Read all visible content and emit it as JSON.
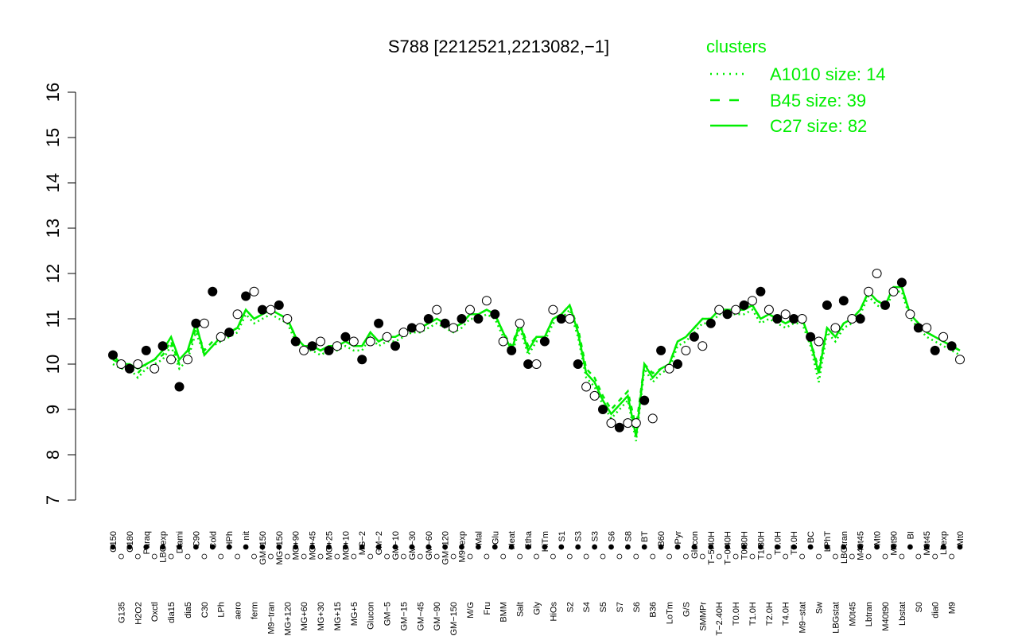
{
  "chart_data": {
    "type": "line",
    "title": "S788 [2212521,2213082,−1]",
    "xlabel": "",
    "ylabel": "",
    "ylim": [
      7,
      16
    ],
    "yticks": [
      7,
      8,
      9,
      10,
      11,
      12,
      13,
      14,
      15,
      16
    ],
    "grid": false,
    "colors": {
      "line": "#00ee00",
      "legend": "#00ee00",
      "axis": "#000000",
      "point_open": "#ffffff",
      "point_filled": "#000000"
    },
    "legend": {
      "title": "clusters",
      "placement": "top-right",
      "entries": [
        {
          "label": "A1010 size: 14",
          "style": "dotted"
        },
        {
          "label": "B45 size: 39",
          "style": "dashed"
        },
        {
          "label": "C27 size: 82",
          "style": "solid"
        }
      ]
    },
    "xtick_labels_row1": [
      "G150",
      "G180",
      "G135",
      "H2O2",
      "Paraq",
      "LBGexp",
      "Oxctl",
      "dia15",
      "Diami",
      "dia5",
      "C90",
      "C30",
      "Cold",
      "HPh",
      "LPh",
      "aero",
      "nit",
      "ferm",
      "GM+150",
      "MG+150",
      "M9−tran",
      "MG+120",
      "MG+90",
      "MG+60",
      "MG+45",
      "MG+30",
      "MG+25",
      "MG+15",
      "MG+10",
      "MG+5",
      "MG−2",
      "Glucon",
      "GM−2",
      "GM−5",
      "GM−10",
      "GM−15",
      "GM−30",
      "GM−45",
      "GM−60",
      "GM−90",
      "GM−120",
      "GM−150",
      "M9−exp",
      "M/G",
      "Mal",
      "Fru",
      "Glu",
      "BMM",
      "Heat",
      "Salt",
      "Etha",
      "Gly",
      "HiTm",
      "HiOs",
      "S1",
      "S2",
      "S3",
      "S4",
      "S3",
      "S5",
      "S6",
      "S7",
      "S8",
      "S6",
      "BT",
      "B36",
      "B60",
      "LoTm",
      "Pyr",
      "G/S",
      "Glucon",
      "SMMPr",
      "T−5.40H",
      "T−2.40H",
      "T−0.40H",
      "T0.0H",
      "T0.30H",
      "T1.0H",
      "T1.30H",
      "T2.0H",
      "T3.0H",
      "T4.0H",
      "T5.0H",
      "M9−stat",
      "BC",
      "Sw",
      "LPhT",
      "LBGstat",
      "LBGtran",
      "M0t45",
      "M40t45",
      "Lbtran",
      "Mt0",
      "M40t90",
      "M0t90",
      "Lbstat",
      "BI",
      "S0",
      "M0t45",
      "dia0",
      "Lbexp",
      "M9",
      "Mt0"
    ],
    "x_label_display": [
      "G150",
      "G135",
      "G180",
      "H2O2",
      "Paraq",
      "Oxctl",
      "LBGexp",
      "dia15",
      "Diami",
      "dia5",
      "C90",
      "C30",
      "Cold",
      "LPh",
      "HPh",
      "aero",
      "nit",
      "ferm",
      "GM+150",
      "M9−tran",
      "MG+150",
      "MG+120",
      "MG+90",
      "MG+60",
      "MG+45",
      "MG+30",
      "MG+25",
      "MG+15",
      "MG+10",
      "MG+5",
      "MG−2",
      "Glucon",
      "GM−2",
      "GM−5",
      "GM−10",
      "GM−15",
      "GM−30",
      "GM−45",
      "GM−60",
      "GM−90",
      "GM−120",
      "GM−150",
      "M9−exp",
      "M/G",
      "Mal",
      "Fru",
      "Glu",
      "BMM",
      "Heat",
      "Salt",
      "Etha",
      "Gly",
      "HiTm",
      "HiOs",
      "S1",
      "S2",
      "S3",
      "S4",
      "S3",
      "S5",
      "S6",
      "S7",
      "S8",
      "S6",
      "BT",
      "B36",
      "B60",
      "LoTm",
      "Pyr",
      "G/S",
      "Glucon",
      "SMMPr",
      "T−5.40H",
      "T−2.40H",
      "T−0.40H",
      "T0.0H",
      "T0.30H",
      "T1.0H",
      "T1.30H",
      "T2.0H",
      "T3.0H",
      "T4.0H",
      "T5.0H",
      "M9−stat",
      "BC",
      "Sw",
      "LPhT",
      "LBGstat",
      "LBGtran",
      "M0t45",
      "M40t45",
      "Lbtran",
      "Mt0",
      "M40t90",
      "M0t90",
      "Lbstat",
      "BI",
      "S0",
      "M0t45",
      "dia0",
      "Lbexp",
      "M9",
      "Mt0"
    ],
    "series": [
      {
        "style": "solid",
        "values": [
          10.2,
          10.0,
          10.0,
          9.9,
          10.0,
          10.1,
          10.3,
          10.6,
          10.1,
          10.3,
          10.9,
          10.2,
          10.4,
          10.6,
          10.7,
          10.8,
          11.2,
          11.0,
          11.1,
          11.2,
          11.1,
          11.0,
          10.6,
          10.4,
          10.4,
          10.3,
          10.4,
          10.4,
          10.5,
          10.4,
          10.4,
          10.7,
          10.5,
          10.6,
          10.6,
          10.7,
          10.8,
          10.8,
          10.9,
          11.0,
          10.9,
          10.8,
          10.9,
          11.1,
          11.1,
          11.2,
          11.1,
          10.7,
          10.3,
          10.9,
          10.3,
          10.6,
          10.6,
          11.0,
          11.1,
          11.3,
          10.7,
          9.8,
          9.6,
          9.2,
          8.9,
          9.1,
          9.3,
          8.4,
          10.0,
          9.7,
          9.9,
          10.0,
          10.5,
          10.6,
          10.8,
          11.0,
          11.0,
          11.2,
          11.2,
          11.2,
          11.2,
          11.3,
          11.0,
          11.1,
          11.0,
          10.9,
          11.0,
          11.0,
          10.5,
          9.8,
          10.8,
          10.6,
          10.9,
          11.0,
          11.2,
          11.6,
          11.4,
          11.3,
          11.7,
          11.7,
          11.1,
          10.9,
          10.7,
          10.6,
          10.5,
          10.4,
          10.3
        ]
      },
      {
        "style": "dashed",
        "values": [
          10.1,
          10.0,
          9.9,
          9.8,
          10.0,
          10.1,
          10.2,
          10.5,
          10.0,
          10.2,
          10.8,
          10.3,
          10.5,
          10.6,
          10.7,
          10.8,
          11.2,
          11.0,
          11.1,
          11.2,
          11.1,
          11.0,
          10.6,
          10.4,
          10.4,
          10.3,
          10.4,
          10.4,
          10.5,
          10.4,
          10.4,
          10.7,
          10.5,
          10.6,
          10.6,
          10.7,
          10.8,
          10.8,
          10.9,
          11.0,
          10.9,
          10.8,
          10.9,
          11.1,
          11.1,
          11.2,
          11.1,
          10.7,
          10.4,
          10.9,
          10.4,
          10.6,
          10.6,
          11.0,
          11.1,
          11.3,
          10.8,
          9.9,
          9.7,
          9.3,
          9.0,
          9.2,
          9.4,
          8.6,
          10.0,
          9.8,
          9.9,
          10.0,
          10.5,
          10.6,
          10.8,
          11.0,
          11.0,
          11.2,
          11.2,
          11.2,
          11.2,
          11.3,
          11.0,
          11.1,
          11.0,
          10.9,
          11.0,
          11.0,
          10.5,
          9.9,
          10.8,
          10.6,
          10.9,
          11.0,
          11.2,
          11.6,
          11.4,
          11.3,
          11.7,
          11.7,
          11.1,
          10.9,
          10.7,
          10.6,
          10.5,
          10.4,
          10.3
        ]
      },
      {
        "style": "dotted",
        "values": [
          10.0,
          9.9,
          9.9,
          9.7,
          9.9,
          10.0,
          10.1,
          10.4,
          9.9,
          10.1,
          10.7,
          10.2,
          10.4,
          10.5,
          10.6,
          10.7,
          11.1,
          10.9,
          11.0,
          11.1,
          11.0,
          10.9,
          10.5,
          10.3,
          10.3,
          10.2,
          10.3,
          10.3,
          10.4,
          10.3,
          10.3,
          10.6,
          10.4,
          10.5,
          10.5,
          10.6,
          10.7,
          10.7,
          10.8,
          10.9,
          10.8,
          10.7,
          10.8,
          11.0,
          11.0,
          11.1,
          11.0,
          10.6,
          10.2,
          10.8,
          10.2,
          10.5,
          10.5,
          10.9,
          11.0,
          11.2,
          10.6,
          9.7,
          9.5,
          9.1,
          8.8,
          9.0,
          9.2,
          8.3,
          9.9,
          9.6,
          9.8,
          9.9,
          10.4,
          10.5,
          10.7,
          10.9,
          10.9,
          11.1,
          11.1,
          11.1,
          11.1,
          11.2,
          10.9,
          11.0,
          10.9,
          10.8,
          10.9,
          10.9,
          10.4,
          9.6,
          10.7,
          10.5,
          10.8,
          10.9,
          11.1,
          11.5,
          11.3,
          11.2,
          11.6,
          11.6,
          11.0,
          10.8,
          10.6,
          10.5,
          10.4,
          10.3,
          10.2
        ]
      }
    ],
    "points": [
      {
        "y": 10.2,
        "f": 1
      },
      {
        "y": 10.0,
        "f": 0
      },
      {
        "y": 9.9,
        "f": 1
      },
      {
        "y": 10.0,
        "f": 0
      },
      {
        "y": 10.3,
        "f": 1
      },
      {
        "y": 9.9,
        "f": 0
      },
      {
        "y": 10.4,
        "f": 1
      },
      {
        "y": 10.1,
        "f": 0
      },
      {
        "y": 9.5,
        "f": 1
      },
      {
        "y": 10.1,
        "f": 0
      },
      {
        "y": 10.9,
        "f": 1
      },
      {
        "y": 10.9,
        "f": 0
      },
      {
        "y": 11.6,
        "f": 1
      },
      {
        "y": 10.6,
        "f": 0
      },
      {
        "y": 10.7,
        "f": 1
      },
      {
        "y": 11.1,
        "f": 0
      },
      {
        "y": 11.5,
        "f": 1
      },
      {
        "y": 11.6,
        "f": 0
      },
      {
        "y": 11.2,
        "f": 1
      },
      {
        "y": 11.2,
        "f": 0
      },
      {
        "y": 11.3,
        "f": 1
      },
      {
        "y": 11.0,
        "f": 0
      },
      {
        "y": 10.5,
        "f": 1
      },
      {
        "y": 10.3,
        "f": 0
      },
      {
        "y": 10.4,
        "f": 1
      },
      {
        "y": 10.5,
        "f": 0
      },
      {
        "y": 10.3,
        "f": 1
      },
      {
        "y": 10.4,
        "f": 0
      },
      {
        "y": 10.6,
        "f": 1
      },
      {
        "y": 10.5,
        "f": 0
      },
      {
        "y": 10.1,
        "f": 1
      },
      {
        "y": 10.5,
        "f": 0
      },
      {
        "y": 10.9,
        "f": 1
      },
      {
        "y": 10.6,
        "f": 0
      },
      {
        "y": 10.4,
        "f": 1
      },
      {
        "y": 10.7,
        "f": 0
      },
      {
        "y": 10.8,
        "f": 1
      },
      {
        "y": 10.8,
        "f": 0
      },
      {
        "y": 11.0,
        "f": 1
      },
      {
        "y": 11.2,
        "f": 0
      },
      {
        "y": 10.9,
        "f": 1
      },
      {
        "y": 10.8,
        "f": 0
      },
      {
        "y": 11.0,
        "f": 1
      },
      {
        "y": 11.2,
        "f": 0
      },
      {
        "y": 11.0,
        "f": 1
      },
      {
        "y": 11.4,
        "f": 0
      },
      {
        "y": 11.1,
        "f": 1
      },
      {
        "y": 10.5,
        "f": 0
      },
      {
        "y": 10.3,
        "f": 1
      },
      {
        "y": 10.9,
        "f": 0
      },
      {
        "y": 10.0,
        "f": 1
      },
      {
        "y": 10.0,
        "f": 0
      },
      {
        "y": 10.5,
        "f": 1
      },
      {
        "y": 11.2,
        "f": 0
      },
      {
        "y": 11.0,
        "f": 1
      },
      {
        "y": 11.0,
        "f": 0
      },
      {
        "y": 10.0,
        "f": 1
      },
      {
        "y": 9.5,
        "f": 0
      },
      {
        "y": 9.3,
        "f": 0
      },
      {
        "y": 9.0,
        "f": 1
      },
      {
        "y": 8.7,
        "f": 0
      },
      {
        "y": 8.6,
        "f": 1
      },
      {
        "y": 8.7,
        "f": 0
      },
      {
        "y": 8.7,
        "f": 0
      },
      {
        "y": 9.2,
        "f": 1
      },
      {
        "y": 8.8,
        "f": 0
      },
      {
        "y": 10.3,
        "f": 1
      },
      {
        "y": 9.9,
        "f": 0
      },
      {
        "y": 10.0,
        "f": 1
      },
      {
        "y": 10.3,
        "f": 0
      },
      {
        "y": 10.6,
        "f": 1
      },
      {
        "y": 10.4,
        "f": 0
      },
      {
        "y": 10.9,
        "f": 1
      },
      {
        "y": 11.2,
        "f": 0
      },
      {
        "y": 11.1,
        "f": 1
      },
      {
        "y": 11.2,
        "f": 0
      },
      {
        "y": 11.3,
        "f": 1
      },
      {
        "y": 11.4,
        "f": 0
      },
      {
        "y": 11.6,
        "f": 1
      },
      {
        "y": 11.2,
        "f": 0
      },
      {
        "y": 11.0,
        "f": 1
      },
      {
        "y": 11.1,
        "f": 0
      },
      {
        "y": 11.0,
        "f": 1
      },
      {
        "y": 11.0,
        "f": 0
      },
      {
        "y": 10.6,
        "f": 1
      },
      {
        "y": 10.5,
        "f": 0
      },
      {
        "y": 11.3,
        "f": 1
      },
      {
        "y": 10.8,
        "f": 0
      },
      {
        "y": 11.4,
        "f": 1
      },
      {
        "y": 11.0,
        "f": 0
      },
      {
        "y": 11.0,
        "f": 1
      },
      {
        "y": 11.6,
        "f": 0
      },
      {
        "y": 12.0,
        "f": 0
      },
      {
        "y": 11.3,
        "f": 1
      },
      {
        "y": 11.6,
        "f": 0
      },
      {
        "y": 11.8,
        "f": 1
      },
      {
        "y": 11.1,
        "f": 0
      },
      {
        "y": 10.8,
        "f": 1
      },
      {
        "y": 10.8,
        "f": 0
      },
      {
        "y": 10.3,
        "f": 1
      },
      {
        "y": 10.6,
        "f": 0
      },
      {
        "y": 10.4,
        "f": 1
      },
      {
        "y": 10.1,
        "f": 0
      }
    ]
  }
}
